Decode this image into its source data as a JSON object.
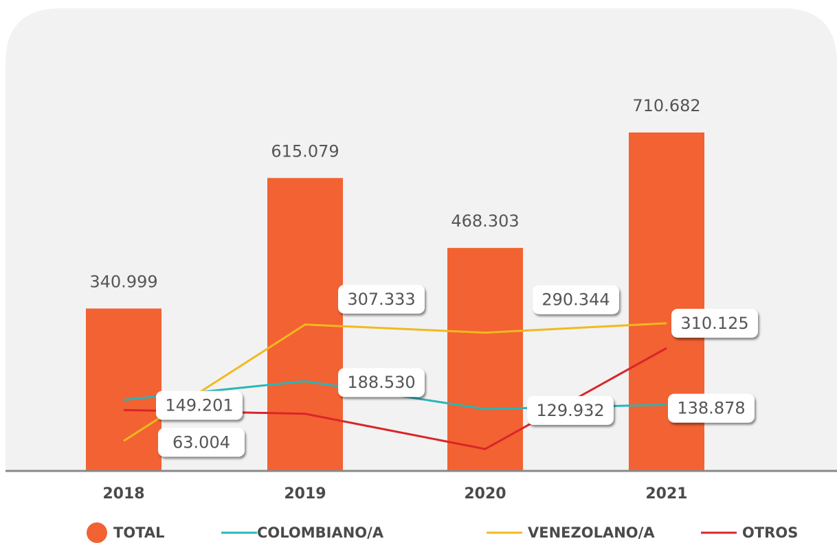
{
  "chart_data": {
    "type": "bar",
    "categories": [
      "2018",
      "2019",
      "2020",
      "2021"
    ],
    "ylim": [
      0,
      800000
    ],
    "series": [
      {
        "name": "TOTAL",
        "type": "bar",
        "color": "#f26232",
        "values": [
          340999,
          615079,
          468303,
          710682
        ],
        "value_labels": [
          "340.999",
          "615.079",
          "468.303",
          "710.682"
        ]
      },
      {
        "name": "COLOMBIANO/A",
        "type": "line",
        "color": "#2ab5b7",
        "values": [
          149201,
          188530,
          129932,
          138878
        ],
        "value_labels": [
          "149.201",
          "188.530",
          "129.932",
          "138.878"
        ]
      },
      {
        "name": "VENEZOLANO/A",
        "type": "line",
        "color": "#f2b81e",
        "values": [
          63004,
          307333,
          290344,
          310125
        ],
        "value_labels": [
          "63.004",
          "307.333",
          "290.344",
          "310.125"
        ]
      },
      {
        "name": "OTROS",
        "type": "line",
        "color": "#d9252a",
        "values": [
          128000,
          120000,
          46000,
          258000
        ]
      }
    ],
    "legend": "bottom"
  }
}
